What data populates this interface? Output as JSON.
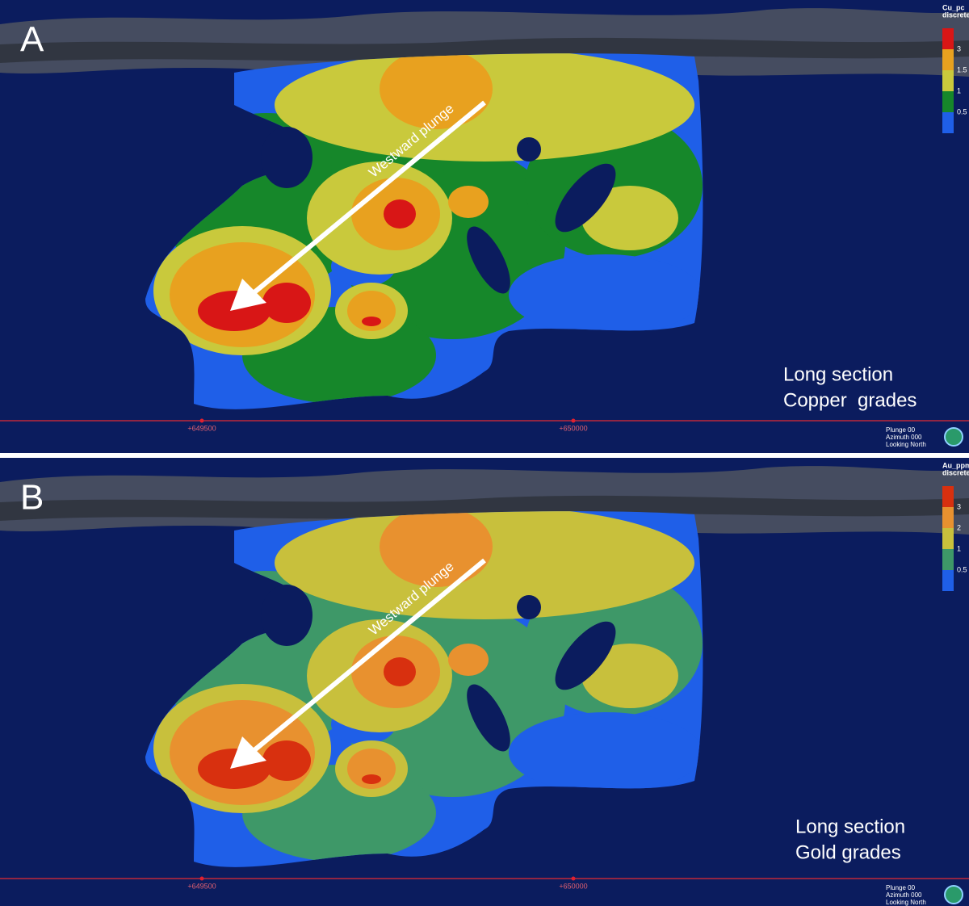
{
  "panels": [
    {
      "label": "A",
      "annotation": "Westward plunge",
      "legend": {
        "title": [
          "Cu_pc",
          "discrete"
        ],
        "ticks": [
          "3",
          "1.5",
          "1",
          "0.5"
        ]
      },
      "eastings": [
        "+649500",
        "+650000"
      ],
      "view": [
        "Plunge 00",
        "Azimuth 000",
        "Looking North"
      ],
      "caption": [
        "Long section",
        "Copper  grades"
      ]
    },
    {
      "label": "B",
      "annotation": "Westward plunge",
      "legend": {
        "title": [
          "Au_ppm",
          "discrete"
        ],
        "ticks": [
          "3",
          "2",
          "1",
          "0.5"
        ]
      },
      "eastings": [
        "+649500",
        "+650000"
      ],
      "view": [
        "Plunge 00",
        "Azimuth 000",
        "Looking North"
      ],
      "caption": [
        "Long section",
        "Gold grades"
      ]
    }
  ]
}
